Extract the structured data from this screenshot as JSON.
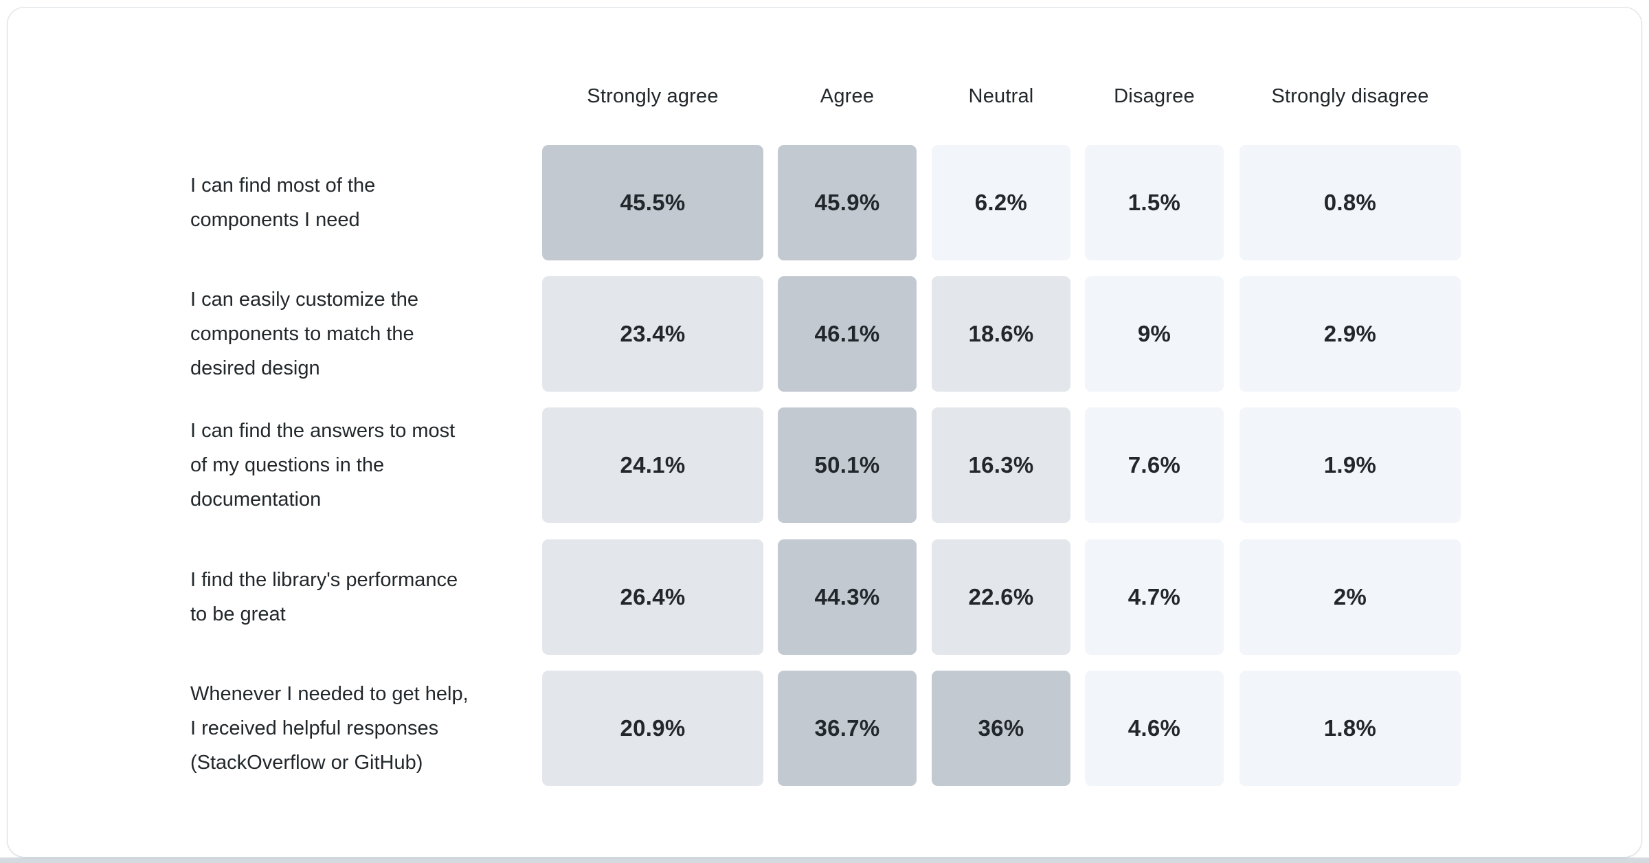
{
  "colors": {
    "page_background": "#ffffff",
    "page_bottom_strip": "#d5dae0",
    "card_background": "#ffffff",
    "card_border": "#d9dee3",
    "text": "#21272a",
    "heat_low": "#f2f5f9",
    "heat_mid": "#e3e6eb",
    "heat_high": "#c3c9d1"
  },
  "chart_data": {
    "type": "heatmap",
    "title": "",
    "value_format": "percent",
    "legend": "none",
    "columns": [
      "Strongly agree",
      "Agree",
      "Neutral",
      "Disagree",
      "Strongly disagree"
    ],
    "rows": [
      {
        "label": "I can find most of the components I need",
        "label_lines": "I can find most of the\ncomponents I need",
        "values": [
          45.5,
          45.9,
          6.2,
          1.5,
          0.8
        ],
        "display": [
          "45.5%",
          "45.9%",
          "6.2%",
          "1.5%",
          "0.8%"
        ]
      },
      {
        "label": "I can easily customize the components to match the desired design",
        "label_lines": "I can easily customize the\ncomponents to match the\ndesired design",
        "values": [
          23.4,
          46.1,
          18.6,
          9,
          2.9
        ],
        "display": [
          "23.4%",
          "46.1%",
          "18.6%",
          "9%",
          "2.9%"
        ]
      },
      {
        "label": "I can find the answers to most of my questions in the documentation",
        "label_lines": "I can find the answers to most\nof my questions in the\ndocumentation",
        "values": [
          24.1,
          50.1,
          16.3,
          7.6,
          1.9
        ],
        "display": [
          "24.1%",
          "50.1%",
          "16.3%",
          "7.6%",
          "1.9%"
        ]
      },
      {
        "label": "I find the library's performance to be great",
        "label_lines": "I find the library's performance\nto be great",
        "values": [
          26.4,
          44.3,
          22.6,
          4.7,
          2
        ],
        "display": [
          "26.4%",
          "44.3%",
          "22.6%",
          "4.7%",
          "2%"
        ]
      },
      {
        "label": "Whenever I needed to get help, I received helpful responses (StackOverflow or GitHub)",
        "label_lines": "Whenever I needed to get help,\nI received helpful responses\n(StackOverflow or GitHub)",
        "values": [
          20.9,
          36.7,
          36,
          4.6,
          1.8
        ],
        "display": [
          "20.9%",
          "36.7%",
          "36%",
          "4.6%",
          "1.8%"
        ]
      }
    ],
    "color_bins": [
      {
        "max_value": 10,
        "color": "#f2f5f9"
      },
      {
        "max_value": 30,
        "color": "#e3e6eb"
      },
      {
        "max_value": 100,
        "color": "#c3c9d1"
      }
    ]
  }
}
